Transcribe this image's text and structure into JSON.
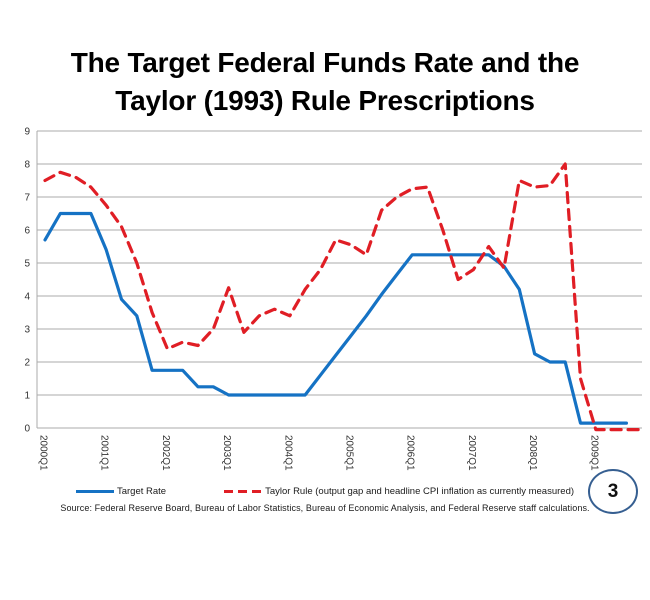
{
  "slide": {
    "title_line1": "The Target Federal Funds Rate and the",
    "title_line2": "Taylor (1993) Rule Prescriptions",
    "source": "Source:  Federal Reserve Board, Bureau of Labor Statistics,  Bureau of Economic Analysis, and Federal Reserve staff calculations.",
    "page_number": "3"
  },
  "legend": {
    "target_rate_label": "Target Rate",
    "taylor_rule_label": "Taylor Rule (output gap and headline CPI inflation as currently measured)"
  },
  "colors": {
    "target_rate": "#1572C4",
    "taylor_rule": "#E01E25",
    "gridline": "#ABABAB",
    "tick_text": "#333333",
    "page_circle_border": "#365F91"
  },
  "chart_data": {
    "type": "line",
    "title": "The Target Federal Funds Rate and the Taylor (1993) Rule Prescriptions",
    "xlabel": "",
    "ylabel": "",
    "ylim": [
      0,
      9
    ],
    "grid": true,
    "legend_position": "bottom",
    "x": [
      "2000Q1",
      "2000Q2",
      "2000Q3",
      "2000Q4",
      "2001Q1",
      "2001Q2",
      "2001Q3",
      "2001Q4",
      "2002Q1",
      "2002Q2",
      "2002Q3",
      "2002Q4",
      "2003Q1",
      "2003Q2",
      "2003Q3",
      "2003Q4",
      "2004Q1",
      "2004Q2",
      "2004Q3",
      "2004Q4",
      "2005Q1",
      "2005Q2",
      "2005Q3",
      "2005Q4",
      "2006Q1",
      "2006Q2",
      "2006Q3",
      "2006Q4",
      "2007Q1",
      "2007Q2",
      "2007Q3",
      "2007Q4",
      "2008Q1",
      "2008Q2",
      "2008Q3",
      "2008Q4",
      "2009Q1",
      "2009Q2",
      "2009Q3",
      "2009Q4"
    ],
    "x_tick_labels": [
      "2000Q1",
      "2001Q1",
      "2002Q1",
      "2003Q1",
      "2004Q1",
      "2005Q1",
      "2006Q1",
      "2007Q1",
      "2008Q1",
      "2009Q1"
    ],
    "y_ticks": [
      0,
      1,
      2,
      3,
      4,
      5,
      6,
      7,
      8,
      9
    ],
    "series": [
      {
        "name": "Target Rate",
        "style": "solid",
        "color": "#1572C4",
        "values": [
          5.7,
          6.5,
          6.5,
          6.5,
          5.4,
          3.9,
          3.4,
          1.75,
          1.75,
          1.75,
          1.25,
          1.25,
          1.0,
          1.0,
          1.0,
          1.0,
          1.0,
          1.0,
          1.6,
          2.2,
          2.8,
          3.4,
          4.05,
          4.65,
          5.25,
          5.25,
          5.25,
          5.25,
          5.25,
          5.25,
          4.9,
          4.2,
          2.25,
          2.0,
          2.0,
          0.15,
          0.15,
          0.15,
          0.15,
          null
        ]
      },
      {
        "name": "Taylor Rule (output gap and headline CPI inflation as currently measured)",
        "style": "dashed",
        "color": "#E01E25",
        "values": [
          7.5,
          7.75,
          7.6,
          7.3,
          6.75,
          6.1,
          5.0,
          3.5,
          2.4,
          2.6,
          2.5,
          3.0,
          4.25,
          2.9,
          3.4,
          3.6,
          3.4,
          4.2,
          4.8,
          5.7,
          5.55,
          5.25,
          6.6,
          7.0,
          7.25,
          7.3,
          6.0,
          4.5,
          4.8,
          5.5,
          4.85,
          7.5,
          7.3,
          7.35,
          8.0,
          1.5,
          -0.05,
          -0.05,
          -0.05,
          -0.05
        ]
      }
    ]
  }
}
